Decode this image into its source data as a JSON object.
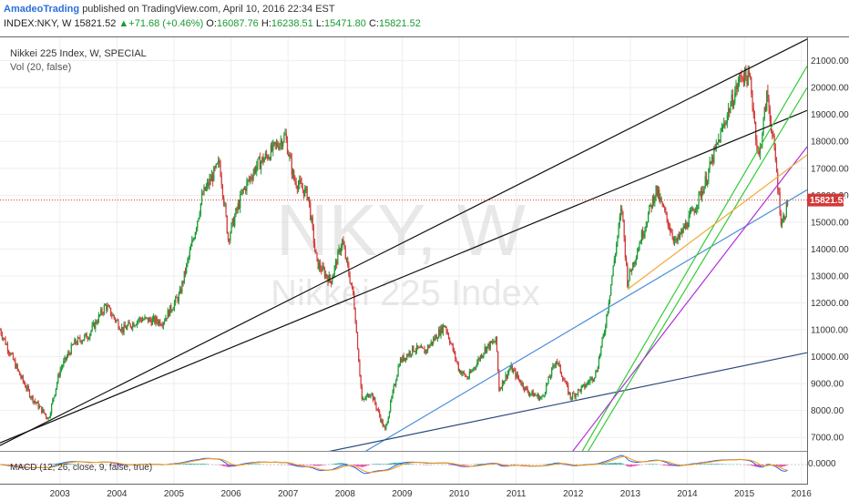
{
  "header": {
    "publisher": "AmadeoTrading",
    "published_text": "published on TradingView.com, April 10, 2016 22:34 EST",
    "symbol": "INDEX:NKY, W",
    "last": "15821.52",
    "arrow": "▲",
    "change": "+71.68 (+0.46%)",
    "o_label": "O:",
    "o_value": "16087.76",
    "h_label": "H:",
    "h_value": "16238.51",
    "l_label": "L:",
    "l_value": "15471.80",
    "c_label": "C:",
    "c_value": "15821.52"
  },
  "legend": {
    "title": "Nikkei 225 Index, W, SPECIAL",
    "volume": "Vol (20, false)",
    "macd": "MACD (12, 26, close, 9, false, true)"
  },
  "watermark": {
    "symbol": "NKY, W",
    "name": "Nikkei 225 Index"
  },
  "price_tag": "15821.52",
  "macd_axis_label": "0.0000",
  "colors": {
    "up": "#1a9a33",
    "down": "#d23a3a",
    "last_line": "#d23a3a",
    "black_trend": "#111111",
    "blue_trend": "#4a90d9",
    "navy_trend": "#2b4a7e",
    "green_trend": "#33cc33",
    "magenta_trend": "#b030d8",
    "orange_trend": "#f2a93b"
  },
  "chart_data": {
    "type": "candlestick",
    "timeframe": "weekly",
    "x_axis_labels": [
      "2003",
      "2004",
      "2005",
      "2006",
      "2007",
      "2008",
      "2009",
      "2010",
      "2011",
      "2012",
      "2013",
      "2014",
      "2015",
      "2016"
    ],
    "y_axis_labels": [
      "21000.00",
      "20000.00",
      "19000.00",
      "18000.00",
      "17000.00",
      "16000.00",
      "15000.00",
      "14000.00",
      "13000.00",
      "12000.00",
      "11000.00",
      "10000.00",
      "9000.00",
      "8000.00",
      "7000.00"
    ],
    "ylim": [
      6500,
      21900
    ],
    "xlim": [
      2002.45,
      2016.6
    ],
    "last_close": 15821.52,
    "price_path": [
      [
        2002.45,
        11000
      ],
      [
        2002.8,
        9300
      ],
      [
        2003.0,
        8500
      ],
      [
        2003.3,
        7700
      ],
      [
        2003.5,
        9500
      ],
      [
        2003.75,
        10500
      ],
      [
        2004.0,
        10800
      ],
      [
        2004.3,
        11900
      ],
      [
        2004.6,
        11000
      ],
      [
        2004.9,
        11400
      ],
      [
        2005.3,
        11300
      ],
      [
        2005.6,
        12300
      ],
      [
        2005.85,
        14500
      ],
      [
        2006.0,
        16000
      ],
      [
        2006.3,
        17200
      ],
      [
        2006.45,
        14400
      ],
      [
        2006.7,
        16100
      ],
      [
        2006.95,
        17100
      ],
      [
        2007.15,
        17500
      ],
      [
        2007.45,
        18200
      ],
      [
        2007.6,
        16600
      ],
      [
        2007.85,
        16000
      ],
      [
        2008.0,
        13500
      ],
      [
        2008.25,
        12800
      ],
      [
        2008.45,
        14300
      ],
      [
        2008.65,
        12200
      ],
      [
        2008.8,
        8300
      ],
      [
        2008.95,
        8700
      ],
      [
        2009.2,
        7250
      ],
      [
        2009.45,
        9800
      ],
      [
        2009.7,
        10300
      ],
      [
        2009.9,
        10200
      ],
      [
        2010.25,
        11200
      ],
      [
        2010.5,
        9500
      ],
      [
        2010.65,
        9200
      ],
      [
        2010.95,
        10300
      ],
      [
        2011.15,
        10600
      ],
      [
        2011.2,
        8800
      ],
      [
        2011.4,
        9600
      ],
      [
        2011.7,
        8700
      ],
      [
        2011.95,
        8450
      ],
      [
        2012.2,
        9900
      ],
      [
        2012.45,
        8500
      ],
      [
        2012.7,
        8900
      ],
      [
        2012.9,
        9400
      ],
      [
        2013.05,
        11000
      ],
      [
        2013.35,
        15600
      ],
      [
        2013.45,
        12800
      ],
      [
        2013.7,
        14500
      ],
      [
        2013.95,
        16200
      ],
      [
        2014.3,
        14200
      ],
      [
        2014.6,
        15400
      ],
      [
        2014.8,
        16400
      ],
      [
        2014.95,
        17400
      ],
      [
        2015.2,
        19000
      ],
      [
        2015.45,
        20500
      ],
      [
        2015.6,
        20300
      ],
      [
        2015.75,
        17300
      ],
      [
        2015.9,
        19800
      ],
      [
        2016.05,
        17200
      ],
      [
        2016.15,
        14900
      ],
      [
        2016.27,
        15821.52
      ]
    ],
    "trendlines": [
      {
        "color": "black",
        "from": [
          2002.45,
          6700
        ],
        "to": [
          2016.6,
          21800
        ]
      },
      {
        "color": "black",
        "from": [
          2002.45,
          6800
        ],
        "to": [
          2016.6,
          19150
        ]
      },
      {
        "color": "blue",
        "from": [
          2008.55,
          6100
        ],
        "to": [
          2016.6,
          16200
        ]
      },
      {
        "color": "navy",
        "from": [
          2007.35,
          6100
        ],
        "to": [
          2016.6,
          10150
        ]
      },
      {
        "color": "green",
        "from": [
          2012.55,
          6100
        ],
        "to": [
          2016.6,
          20800
        ]
      },
      {
        "color": "green",
        "from": [
          2012.65,
          6100
        ],
        "to": [
          2016.6,
          20000
        ]
      },
      {
        "color": "magenta",
        "from": [
          2012.35,
          6100
        ],
        "to": [
          2016.6,
          17800
        ]
      },
      {
        "color": "orange",
        "from": [
          2013.45,
          12500
        ],
        "to": [
          2016.6,
          17500
        ]
      }
    ],
    "indicators": [
      "Vol (20, false)",
      "MACD (12, 26, close, 9, false, true)"
    ]
  }
}
